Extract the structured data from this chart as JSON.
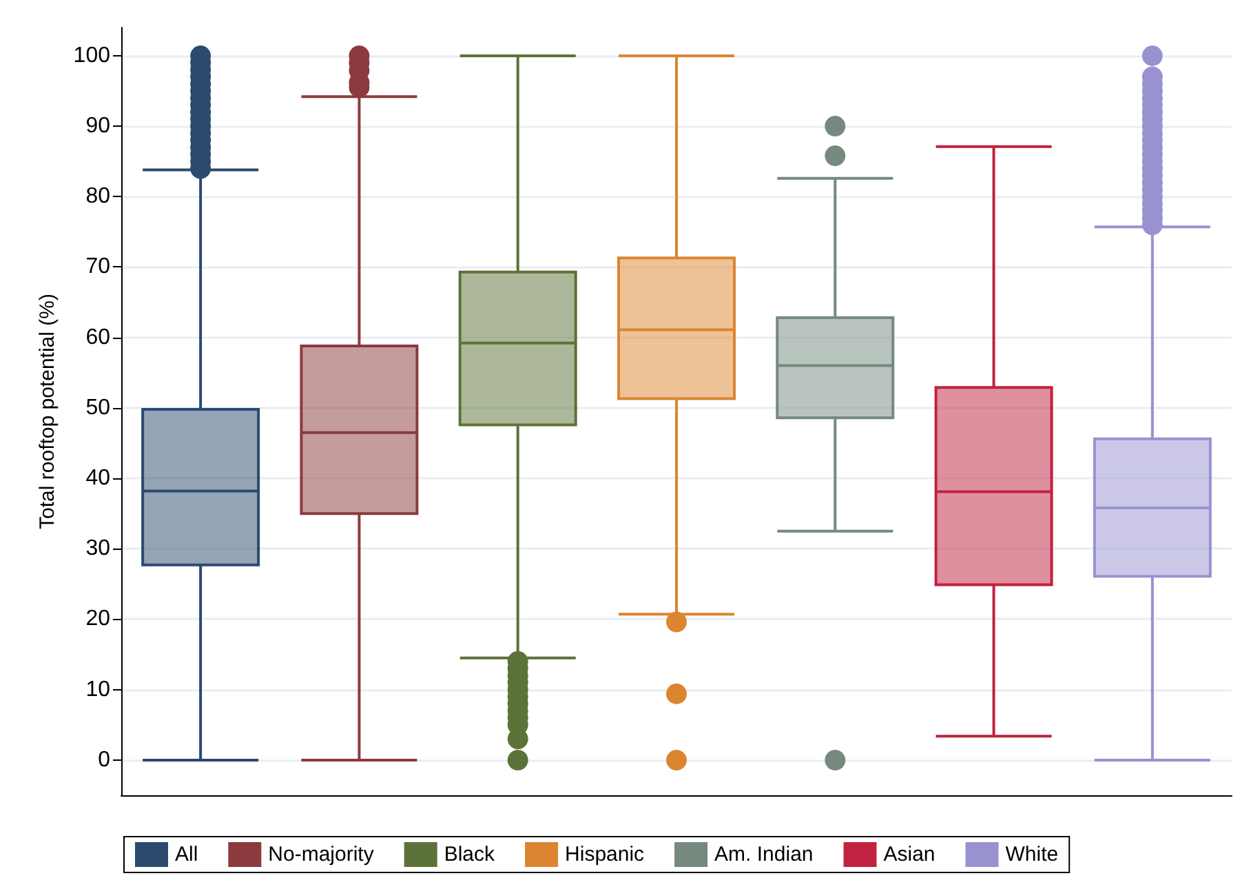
{
  "chart_data": {
    "type": "box",
    "ylabel": "Total rooftop potential (%)",
    "categories": [
      null,
      null,
      null,
      null,
      null,
      null,
      null
    ],
    "ylim": [
      -5,
      104
    ],
    "yticks": [
      0,
      10,
      20,
      30,
      40,
      50,
      60,
      70,
      80,
      90,
      100
    ],
    "grid": "y",
    "legend": "bottom",
    "tick_labels": "y",
    "marker": "circle",
    "series": [
      {
        "name": "All",
        "color": "#2b4a6e",
        "boxes": [
          {
            "low": 0,
            "q1": 27.7,
            "median": 38.2,
            "q3": 49.8,
            "high": 83.8,
            "outliers": [
              84,
              85,
              86,
              87,
              88,
              89,
              90,
              91,
              92,
              93,
              94,
              95,
              96,
              97,
              98,
              99,
              100
            ]
          },
          null,
          null,
          null,
          null,
          null,
          null
        ]
      },
      {
        "name": "No-majority",
        "color": "#8b3a3e",
        "boxes": [
          null,
          {
            "low": 0,
            "q1": 35,
            "median": 46.5,
            "q3": 58.8,
            "high": 94.2,
            "outliers": [
              95.5,
              96.2,
              97.9,
              99,
              100
            ]
          },
          null,
          null,
          null,
          null,
          null
        ]
      },
      {
        "name": "Black",
        "color": "#5c7238",
        "boxes": [
          null,
          null,
          {
            "low": 14.5,
            "q1": 47.6,
            "median": 59.2,
            "q3": 69.3,
            "high": 100,
            "outliers": [
              0,
              3,
              5,
              6,
              7,
              8,
              9,
              10,
              11,
              12,
              13,
              14
            ]
          },
          null,
          null,
          null,
          null
        ]
      },
      {
        "name": "Hispanic",
        "color": "#dc8530",
        "boxes": [
          null,
          null,
          null,
          {
            "low": 20.7,
            "q1": 51.3,
            "median": 61.1,
            "q3": 71.3,
            "high": 100,
            "outliers": [
              19.6,
              9.4,
              0
            ]
          },
          null,
          null,
          null
        ]
      },
      {
        "name": "Am. Indian",
        "color": "#75897f",
        "boxes": [
          null,
          null,
          null,
          null,
          {
            "low": 32.5,
            "q1": 48.6,
            "median": 56,
            "q3": 62.8,
            "high": 82.6,
            "outliers": [
              90,
              85.8,
              0
            ]
          },
          null,
          null
        ]
      },
      {
        "name": "Asian",
        "color": "#c0223f",
        "boxes": [
          null,
          null,
          null,
          null,
          null,
          {
            "low": 3.4,
            "q1": 24.9,
            "median": 38.1,
            "q3": 52.9,
            "high": 87.1
          },
          null
        ]
      },
      {
        "name": "White",
        "color": "#9892d0",
        "boxes": [
          null,
          null,
          null,
          null,
          null,
          null,
          {
            "low": 0,
            "q1": 26.1,
            "median": 35.8,
            "q3": 45.6,
            "high": 75.7,
            "outliers": [
              76,
              77,
              78,
              79,
              80,
              81,
              82,
              83,
              84,
              85,
              86,
              87,
              88,
              89,
              90,
              91,
              92,
              93,
              94,
              95,
              96,
              97,
              100
            ]
          }
        ]
      }
    ]
  }
}
